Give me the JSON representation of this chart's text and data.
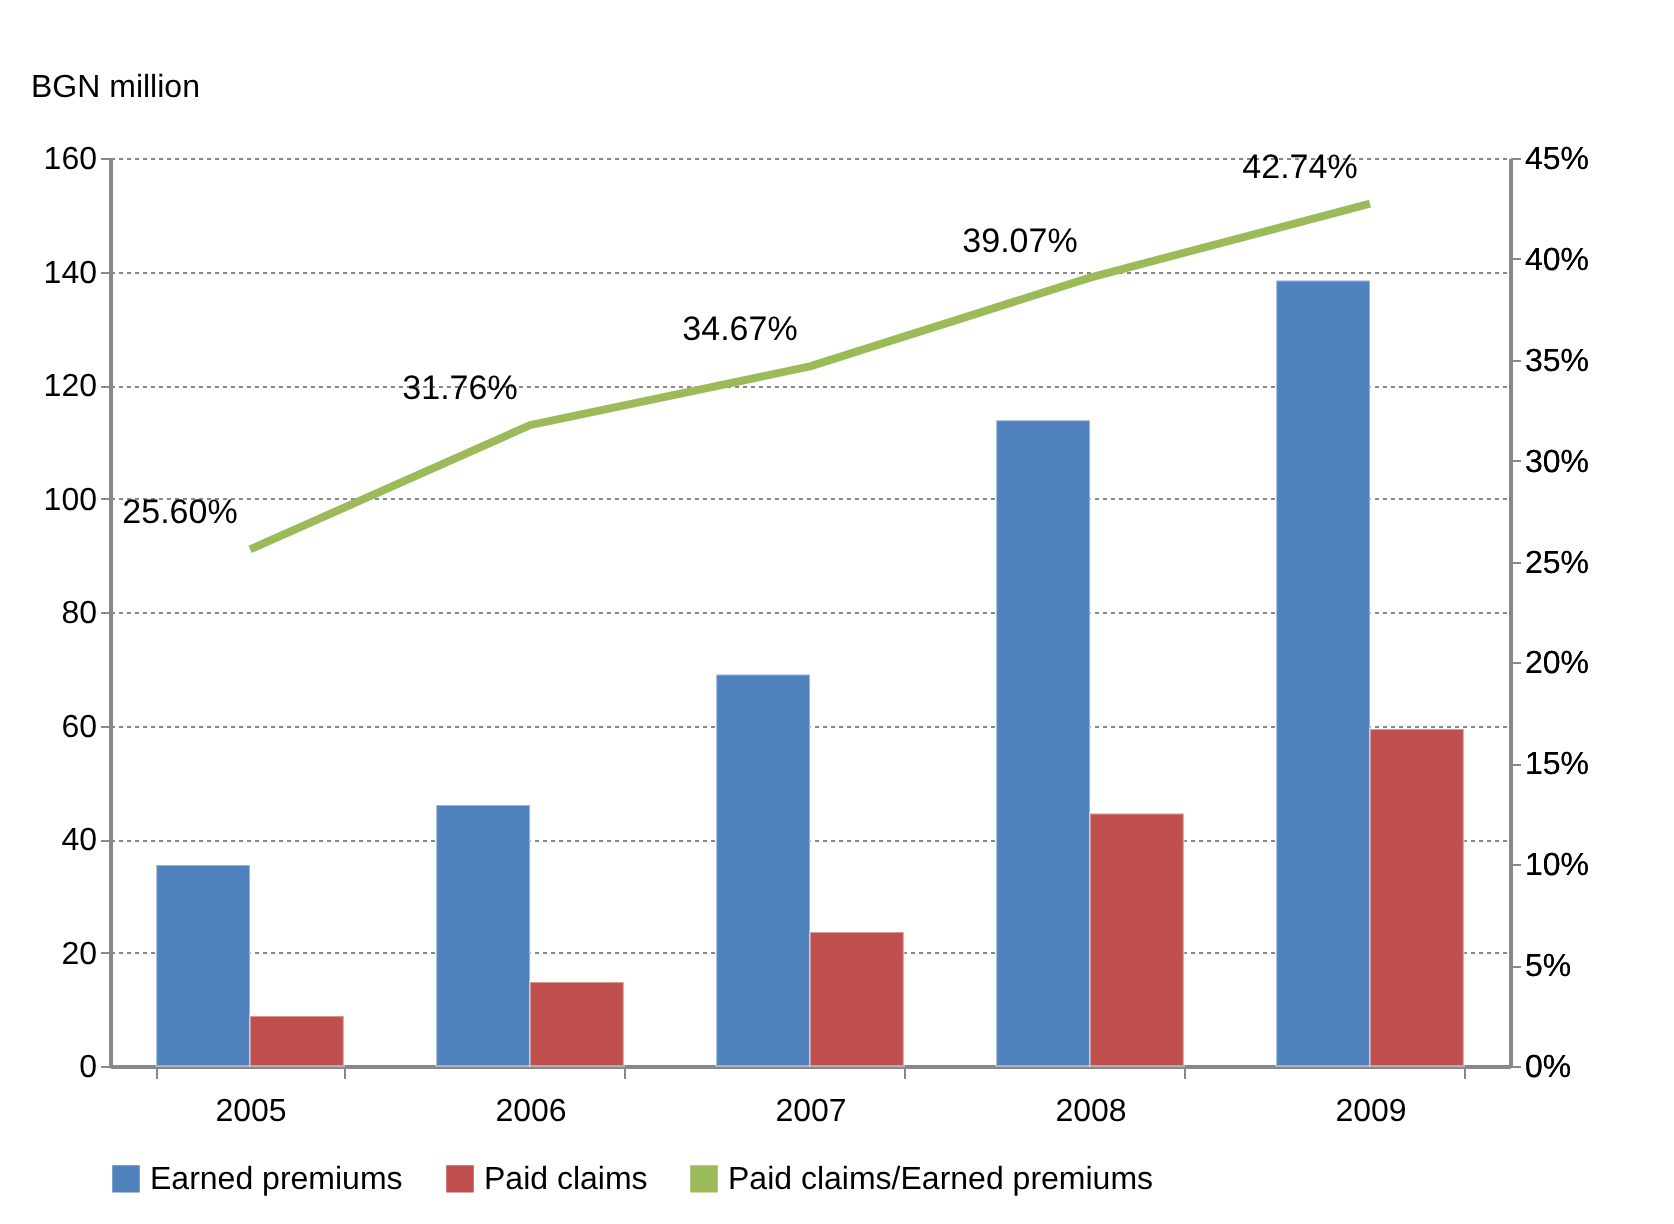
{
  "chart_data": {
    "type": "bar",
    "ylabel": "BGN million",
    "categories": [
      "2005",
      "2006",
      "2007",
      "2008",
      "2009"
    ],
    "series": [
      {
        "name": "Earned premiums",
        "color": "#4f81bd",
        "values": [
          35.4,
          46,
          69,
          113.8,
          138.4
        ]
      },
      {
        "name": "Paid claims",
        "color": "#c0504d",
        "values": [
          8.8,
          14.8,
          23.6,
          44.5,
          59.4
        ]
      },
      {
        "name": "Paid claims/Earned  premiums",
        "type": "line",
        "axis": "y2",
        "color": "#9bbb59",
        "values": [
          25.6,
          31.76,
          34.67,
          39.07,
          42.74
        ],
        "value_labels": [
          "25.60%",
          "31.76%",
          "34.67%",
          "39.07%",
          "42.74%"
        ]
      }
    ],
    "ylim": [
      0,
      160
    ],
    "yticks": [
      0,
      20,
      40,
      60,
      80,
      100,
      120,
      140,
      160
    ],
    "y2lim": [
      0,
      45
    ],
    "y2ticks": [
      {
        "value": 0,
        "label": "0%"
      },
      {
        "value": 5,
        "label": "5%"
      },
      {
        "value": 10,
        "label": "10%"
      },
      {
        "value": 15,
        "label": "15%"
      },
      {
        "value": 20,
        "label": "20%"
      },
      {
        "value": 25,
        "label": "25%"
      },
      {
        "value": 30,
        "label": "30%"
      },
      {
        "value": 35,
        "label": "35%"
      },
      {
        "value": 40,
        "label": "40%"
      },
      {
        "value": 45,
        "label": "45%"
      }
    ],
    "grid": "y",
    "legend": "bottom",
    "marker": "none",
    "line_style": "solid"
  }
}
